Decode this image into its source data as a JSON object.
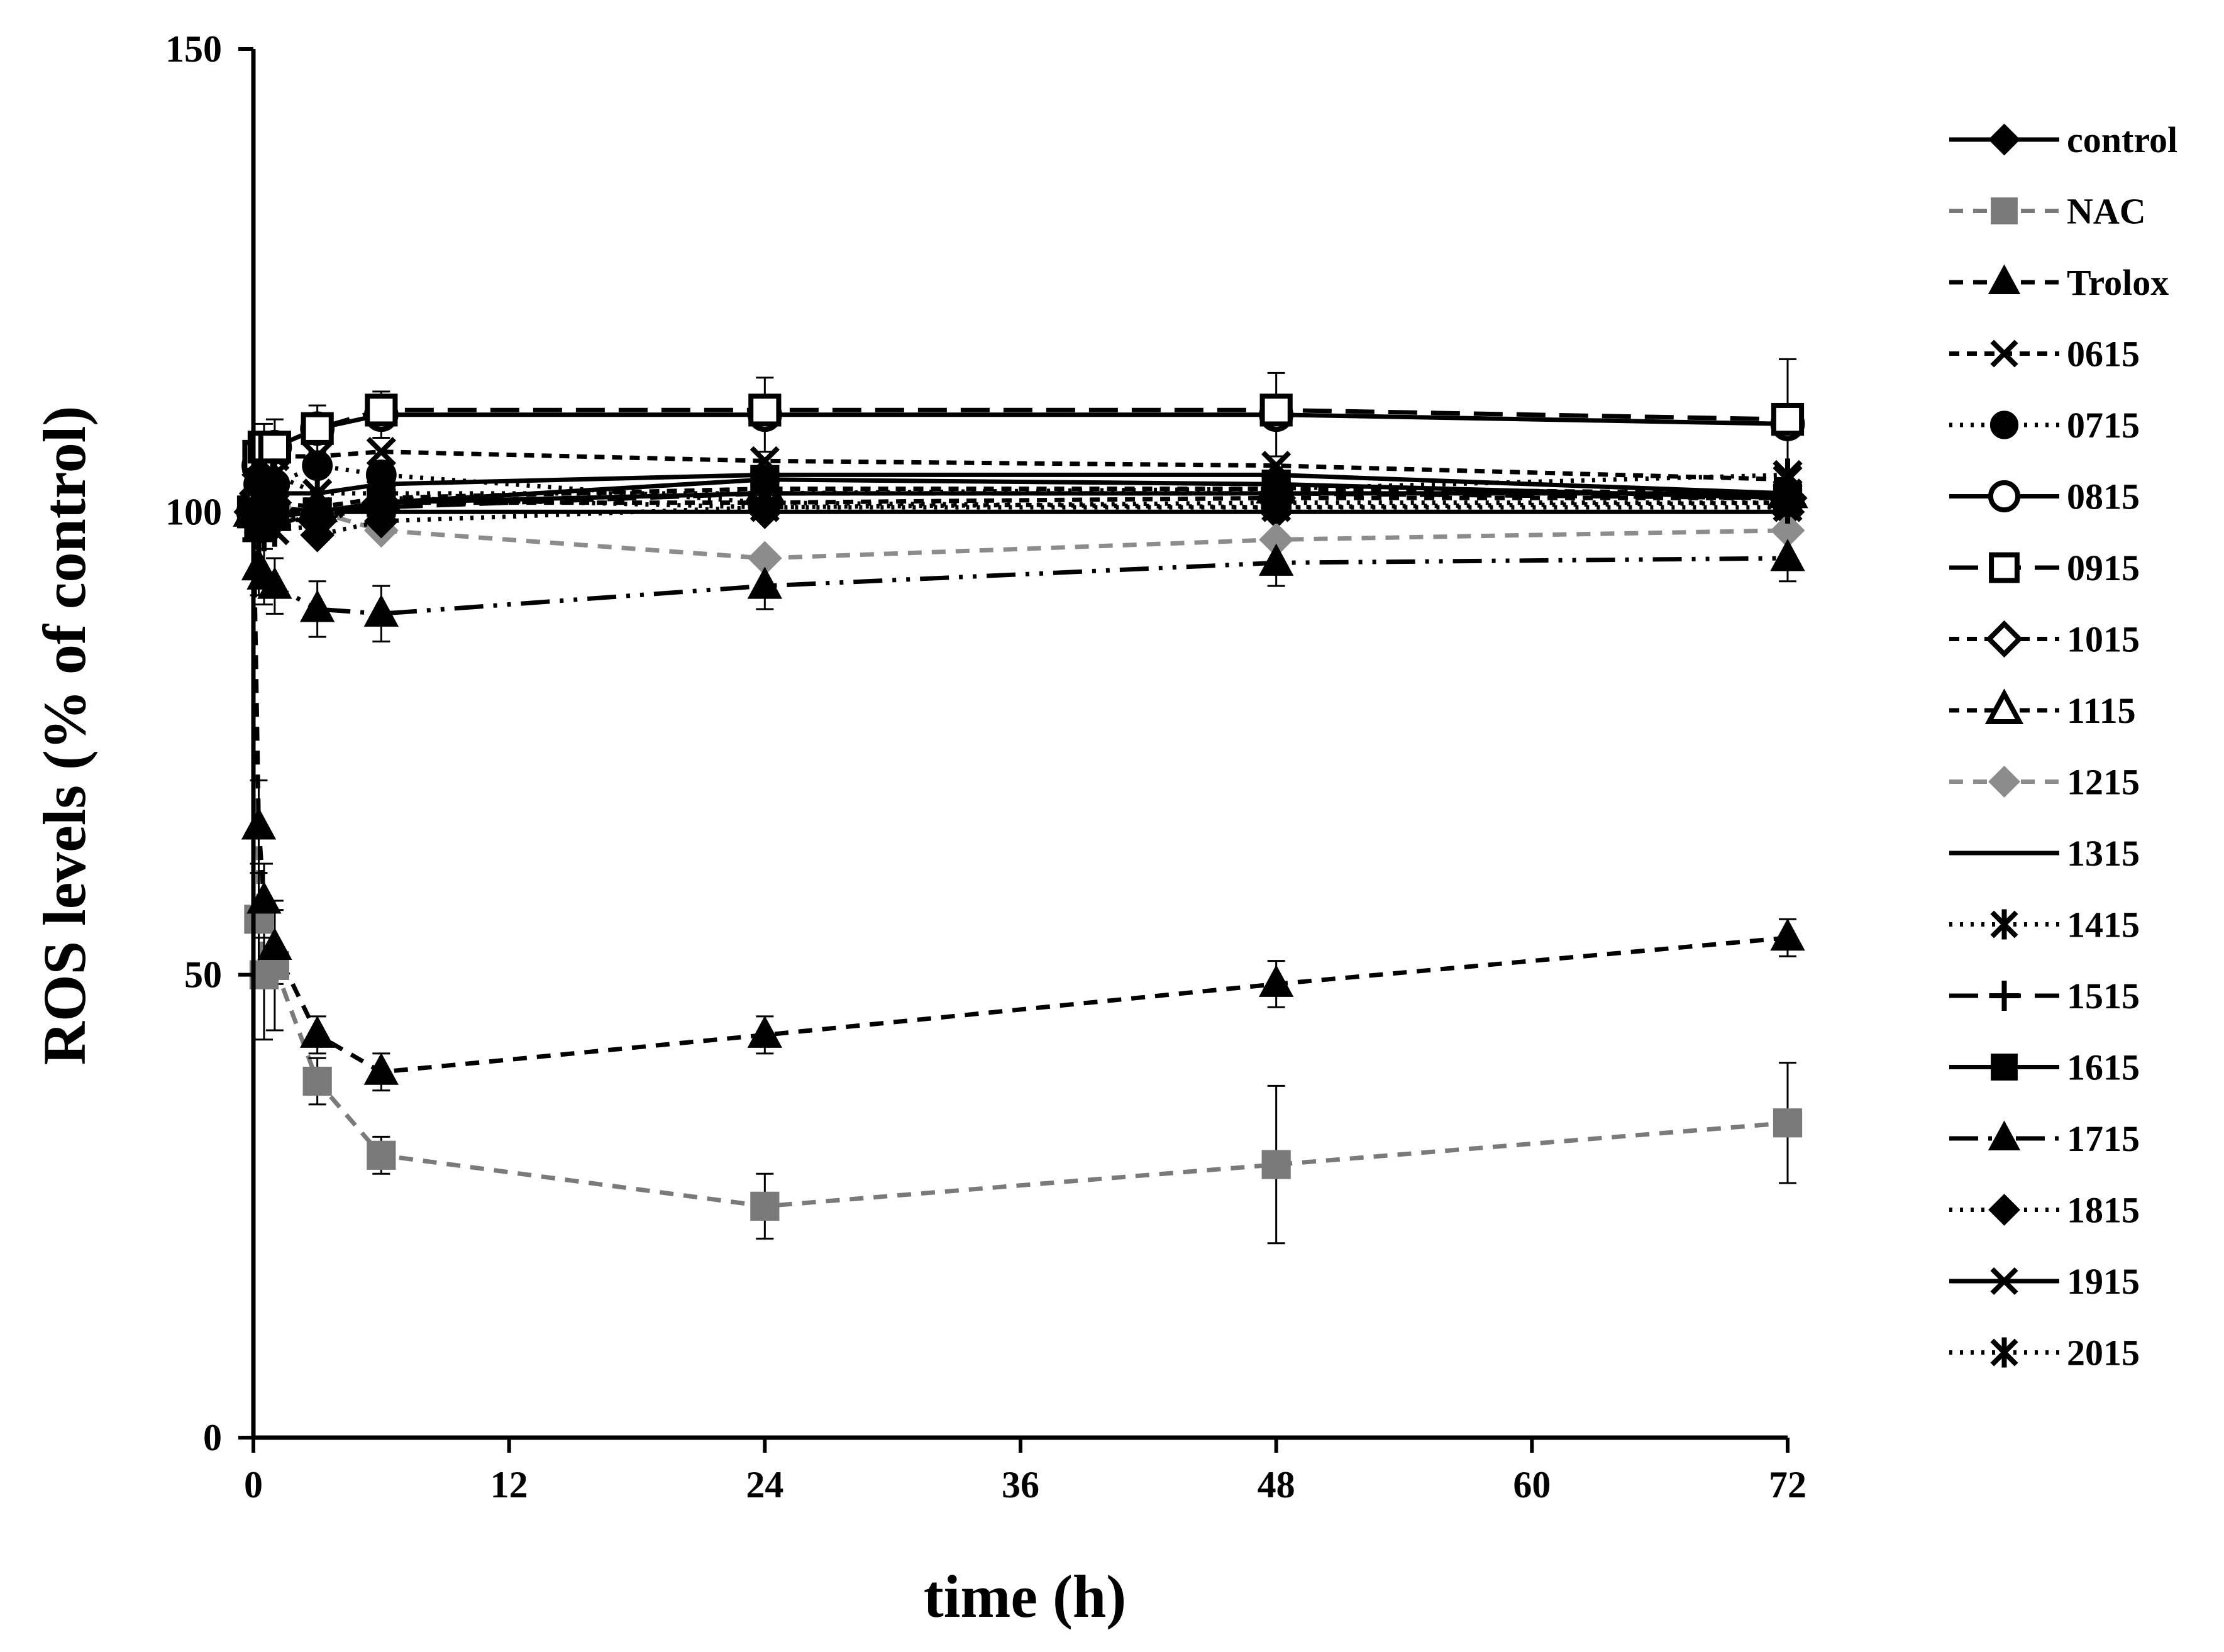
{
  "chart_data": {
    "type": "line",
    "title": "",
    "xlabel": "time (h)",
    "ylabel": "ROS levels (% of control)",
    "xlim": [
      0,
      72
    ],
    "ylim": [
      0,
      150
    ],
    "xticks": [
      "0",
      "12",
      "24",
      "36",
      "48",
      "60",
      "72"
    ],
    "yticks": [
      "0",
      "50",
      "100",
      "150"
    ],
    "grid": false,
    "legend_position": "right",
    "x": [
      0,
      0.25,
      0.5,
      1,
      3,
      6,
      24,
      48,
      72
    ],
    "series": [
      {
        "name": "control",
        "marker": "diamond",
        "fill": "#000000",
        "line": "solid",
        "color": "#000000",
        "values": [
          100,
          100,
          100,
          100,
          100,
          100,
          100,
          100,
          100
        ]
      },
      {
        "name": "NAC",
        "marker": "square",
        "fill": "#7a7a7a",
        "line": "dash",
        "color": "#7a7a7a",
        "values": [
          100,
          56,
          50,
          51,
          38.5,
          30.5,
          25,
          29.5,
          34
        ],
        "err": [
          0,
          6,
          7,
          7,
          2.5,
          2,
          3.5,
          8.5,
          6.5
        ]
      },
      {
        "name": "Trolox",
        "marker": "triangle",
        "fill": "#000000",
        "line": "dash",
        "color": "#000000",
        "values": [
          100,
          66,
          58,
          53,
          43.5,
          39.5,
          43.5,
          49,
          54
        ],
        "err": [
          0,
          5,
          4,
          4,
          2,
          2,
          2,
          2.5,
          2
        ]
      },
      {
        "name": "0615",
        "marker": "x",
        "fill": "none",
        "line": "shortdash",
        "color": "#000000",
        "values": [
          100,
          104,
          106,
          106,
          106,
          106.5,
          105.5,
          105,
          103.5
        ]
      },
      {
        "name": "0715",
        "marker": "circle",
        "fill": "#000000",
        "line": "dot",
        "color": "#000000",
        "values": [
          100,
          103,
          104,
          103,
          105,
          104,
          101,
          100.5,
          101
        ]
      },
      {
        "name": "0815",
        "marker": "circle",
        "fill": "#ffffff",
        "line": "solid",
        "color": "#000000",
        "values": [
          100,
          105,
          106.5,
          107,
          109,
          110.5,
          110.5,
          110.5,
          109.5
        ],
        "err": [
          0,
          2.5,
          3,
          3,
          2.5,
          2.5,
          4,
          4.5,
          7
        ]
      },
      {
        "name": "0915",
        "marker": "square",
        "fill": "#ffffff",
        "line": "longdash",
        "color": "#000000",
        "values": [
          100,
          106,
          107,
          107,
          109,
          111,
          111,
          111,
          110
        ]
      },
      {
        "name": "1015",
        "marker": "diamond",
        "fill": "#ffffff",
        "line": "shortdash",
        "color": "#000000",
        "values": [
          100,
          102,
          101,
          100,
          99,
          101,
          101,
          101.5,
          101.5
        ]
      },
      {
        "name": "1115",
        "marker": "triangle",
        "fill": "#ffffff",
        "line": "shortdash",
        "color": "#000000",
        "values": [
          100,
          101,
          101.5,
          101,
          100.5,
          101.5,
          102.5,
          102.5,
          102
        ]
      },
      {
        "name": "1215",
        "marker": "diamond",
        "fill": "#8c8c8c",
        "line": "dash",
        "color": "#8c8c8c",
        "values": [
          100,
          101,
          101.5,
          100.5,
          100,
          98,
          95,
          97,
          98
        ]
      },
      {
        "name": "1315",
        "marker": "none",
        "fill": "none",
        "line": "solid",
        "color": "#000000",
        "values": [
          100,
          102,
          102,
          102,
          102,
          103,
          104,
          104,
          102
        ]
      },
      {
        "name": "1415",
        "marker": "asterisk",
        "fill": "none",
        "line": "dot",
        "color": "#000000",
        "values": [
          100,
          99,
          98.5,
          98,
          98.5,
          101.5,
          100.5,
          100.5,
          100.5
        ]
      },
      {
        "name": "1515",
        "marker": "plus",
        "fill": "none",
        "line": "longdash",
        "color": "#000000",
        "values": [
          100,
          97,
          97.5,
          98.5,
          100,
          100.5,
          102,
          102,
          101.5
        ]
      },
      {
        "name": "1615",
        "marker": "square",
        "fill": "#000000",
        "line": "solid",
        "color": "#000000",
        "values": [
          100,
          98.5,
          99,
          99.5,
          100,
          101,
          103.5,
          103,
          101.5
        ]
      },
      {
        "name": "1715",
        "marker": "triangle",
        "fill": "#000000",
        "line": "dashdotdot",
        "color": "#000000",
        "values": [
          100,
          94,
          93,
          92,
          89.5,
          89,
          92,
          94.5,
          95
        ],
        "err": [
          0,
          3,
          3,
          3,
          3,
          3,
          2.5,
          2.5,
          2.5
        ]
      },
      {
        "name": "1815",
        "marker": "diamond",
        "fill": "#000000",
        "line": "dot",
        "color": "#000000",
        "values": [
          100,
          104,
          102.5,
          101,
          97.5,
          99,
          100.5,
          101,
          101
        ]
      },
      {
        "name": "1915",
        "marker": "x",
        "fill": "none",
        "line": "solid",
        "color": "#000000",
        "values": [
          100,
          102,
          101,
          100.5,
          100,
          101,
          102,
          102,
          102
        ]
      },
      {
        "name": "2015",
        "marker": "asterisk",
        "fill": "none",
        "line": "dot",
        "color": "#000000",
        "values": [
          100,
          103,
          103.5,
          104,
          102,
          102,
          102,
          102.5,
          104
        ]
      }
    ]
  }
}
